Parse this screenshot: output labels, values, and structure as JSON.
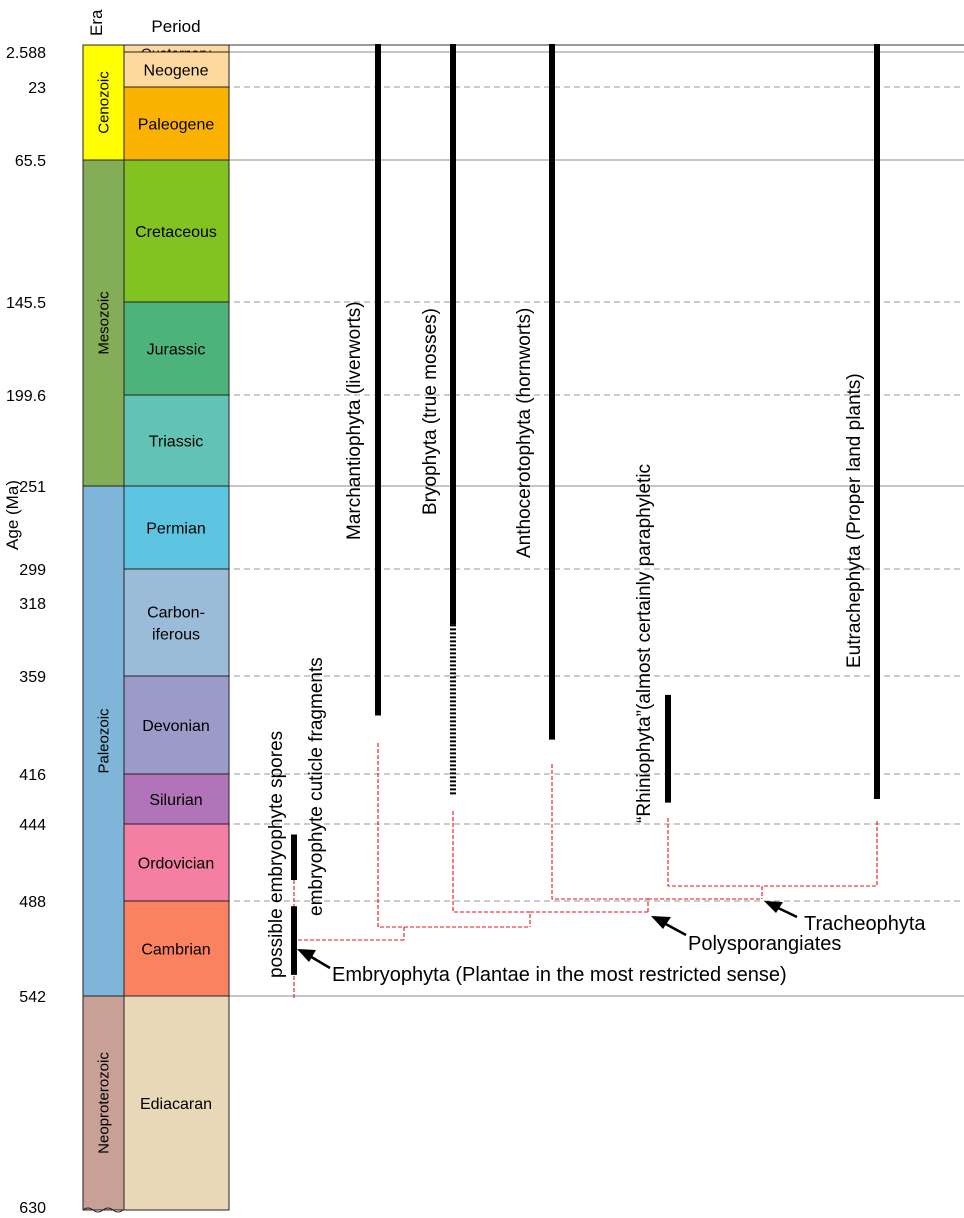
{
  "header": {
    "era_label": "Era",
    "period_label": "Period",
    "axis_label": "Age (Ma)"
  },
  "age_ticks": [
    {
      "label": "2.588",
      "ma": 2.588,
      "line": "solid"
    },
    {
      "label": "23",
      "ma": 23,
      "line": "dashed"
    },
    {
      "label": "65.5",
      "ma": 65.5,
      "line": "solid"
    },
    {
      "label": "145.5",
      "ma": 145.5,
      "line": "dashed"
    },
    {
      "label": "199.6",
      "ma": 199.6,
      "line": "dashed"
    },
    {
      "label": "251",
      "ma": 251,
      "line": "solid"
    },
    {
      "label": "299",
      "ma": 299,
      "line": "dashed"
    },
    {
      "label": "318",
      "ma": 318,
      "line": "none"
    },
    {
      "label": "359",
      "ma": 359,
      "line": "dashed"
    },
    {
      "label": "416",
      "ma": 416,
      "line": "dashed"
    },
    {
      "label": "444",
      "ma": 444,
      "line": "dashed"
    },
    {
      "label": "488",
      "ma": 488,
      "line": "dashed"
    },
    {
      "label": "542",
      "ma": 542,
      "line": "solid"
    },
    {
      "label": "630",
      "ma": 630,
      "line": "none"
    }
  ],
  "eras": [
    {
      "name": "Cenozoic",
      "start": 0,
      "end": 65.5,
      "color": "#ffff00"
    },
    {
      "name": "Mesozoic",
      "start": 65.5,
      "end": 251,
      "color": "#84ad57"
    },
    {
      "name": "Paleozoic",
      "start": 251,
      "end": 542,
      "color": "#7fb5d8"
    },
    {
      "name": "Neoproterozoic",
      "start": 542,
      "end": 630,
      "color": "#c8a096"
    }
  ],
  "periods": [
    {
      "name": "Quaternary",
      "start": 0,
      "end": 2.588,
      "color": "#fdd9a0"
    },
    {
      "name": "Neogene",
      "start": 2.588,
      "end": 23,
      "color": "#fdd9a0"
    },
    {
      "name": "Paleogene",
      "start": 23,
      "end": 65.5,
      "color": "#fbb100"
    },
    {
      "name": "Cretaceous",
      "start": 65.5,
      "end": 145.5,
      "color": "#82c322"
    },
    {
      "name": "Jurassic",
      "start": 145.5,
      "end": 199.6,
      "color": "#4cb37a"
    },
    {
      "name": "Triassic",
      "start": 199.6,
      "end": 251,
      "color": "#62c2b3"
    },
    {
      "name": "Permian",
      "start": 251,
      "end": 299,
      "color": "#5cc4e0"
    },
    {
      "name": "Carbon-\niferous",
      "start": 299,
      "end": 359,
      "color": "#9bbcd8"
    },
    {
      "name": "Devonian",
      "start": 359,
      "end": 416,
      "color": "#9c9ac8"
    },
    {
      "name": "Silurian",
      "start": 416,
      "end": 444,
      "color": "#b274b8"
    },
    {
      "name": "Ordovician",
      "start": 444,
      "end": 488,
      "color": "#f57ea5"
    },
    {
      "name": "Cambrian",
      "start": 488,
      "end": 542,
      "color": "#fa8260"
    },
    {
      "name": "Ediacaran",
      "start": 542,
      "end": 630,
      "color": "#e8d8b8"
    }
  ],
  "taxa": [
    {
      "name": "Marchantiophyta (liverworts)",
      "solid_from": 0,
      "solid_to": 382
    },
    {
      "name": "Bryophyta (true mosses)",
      "solid_from": 0,
      "solid_to": 330,
      "dashed_to": 428
    },
    {
      "name": "Anthocerotophyta (hornworts)",
      "solid_from": 0,
      "solid_to": 396
    },
    {
      "name": "“Rhiniophyta”(almost certainly paraphyletic",
      "solid_from": 370,
      "solid_to": 432
    },
    {
      "name": "Eutrachephyta (Proper land plants)",
      "solid_from": 0,
      "solid_to": 430
    }
  ],
  "early_records": [
    {
      "name": "possible embryophyte spores",
      "from": 491,
      "to": 530
    },
    {
      "name": "embryophyte cuticle fragments",
      "from": 450,
      "to": 476
    }
  ],
  "clade_labels": {
    "tracheophyta": "Tracheophyta",
    "polysporangiates": "Polysporangiates",
    "embryophyta": "Embryophyta (Plantae in the most restricted sense)"
  },
  "colors": {
    "bar": "#000000",
    "tree": "#e8141c",
    "solid_grid": "#8c8c8c",
    "dashed_grid": "#9a9a9a"
  }
}
